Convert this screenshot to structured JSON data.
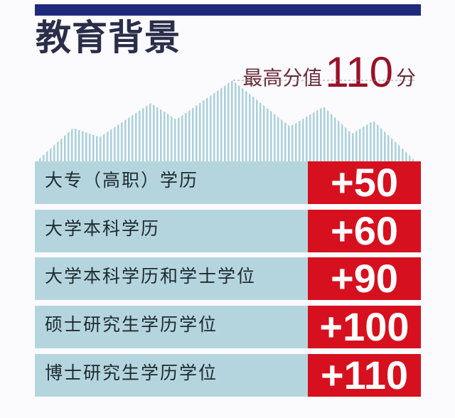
{
  "title": "教育背景",
  "max_score": {
    "label": "最高分值",
    "value": "110",
    "unit": "分"
  },
  "rows": [
    {
      "label": "大专（高职）学历",
      "points": "+50"
    },
    {
      "label": "大学本科学历",
      "points": "+60"
    },
    {
      "label": "大学本科学历和学士学位",
      "points": "+90"
    },
    {
      "label": "硕士研究生学历学位",
      "points": "+100"
    },
    {
      "label": "博士研究生学历学位",
      "points": "+110"
    }
  ],
  "colors": {
    "bar": "#1f2a7a",
    "row_bg": "#b5d5de",
    "points_bg": "#d6101e",
    "mountain": "#a9d0da"
  }
}
